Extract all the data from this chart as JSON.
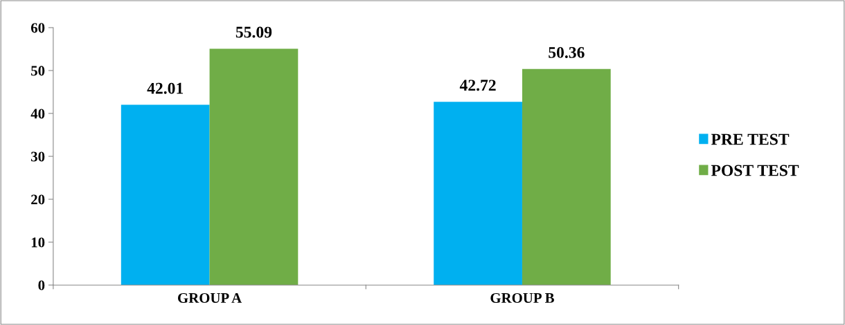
{
  "chart_data": {
    "type": "bar",
    "categories": [
      "GROUP A",
      "GROUP B"
    ],
    "series": [
      {
        "name": "PRE TEST",
        "color": "#00b0f0",
        "values": [
          42.01,
          42.72
        ]
      },
      {
        "name": "POST TEST",
        "color": "#70ad47",
        "values": [
          55.09,
          50.36
        ]
      }
    ],
    "ylim": [
      0,
      60
    ],
    "yticks": [
      0,
      10,
      20,
      30,
      40,
      50,
      60
    ],
    "data_labels": true,
    "legend": "right",
    "grid": false
  }
}
